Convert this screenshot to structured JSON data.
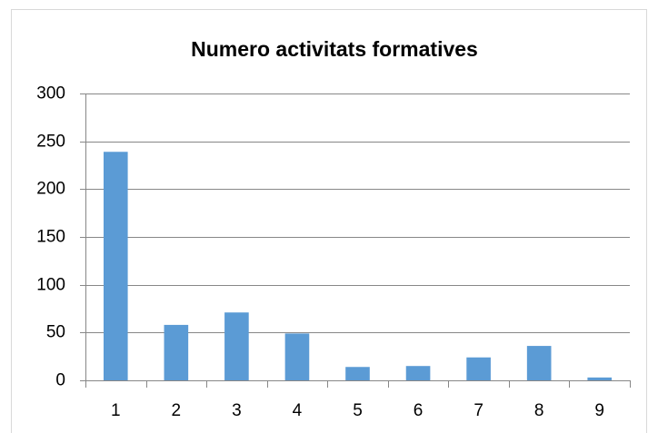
{
  "chart_data": {
    "type": "bar",
    "title": "Numero activitats formatives",
    "categories": [
      "1",
      "2",
      "3",
      "4",
      "5",
      "6",
      "7",
      "8",
      "9"
    ],
    "values": [
      239,
      58,
      71,
      49,
      14,
      15,
      24,
      36,
      3
    ],
    "color": "#5b9bd5",
    "ylim": [
      0,
      300
    ],
    "yticks": [
      0,
      50,
      100,
      150,
      200,
      250,
      300
    ],
    "grid": true
  }
}
